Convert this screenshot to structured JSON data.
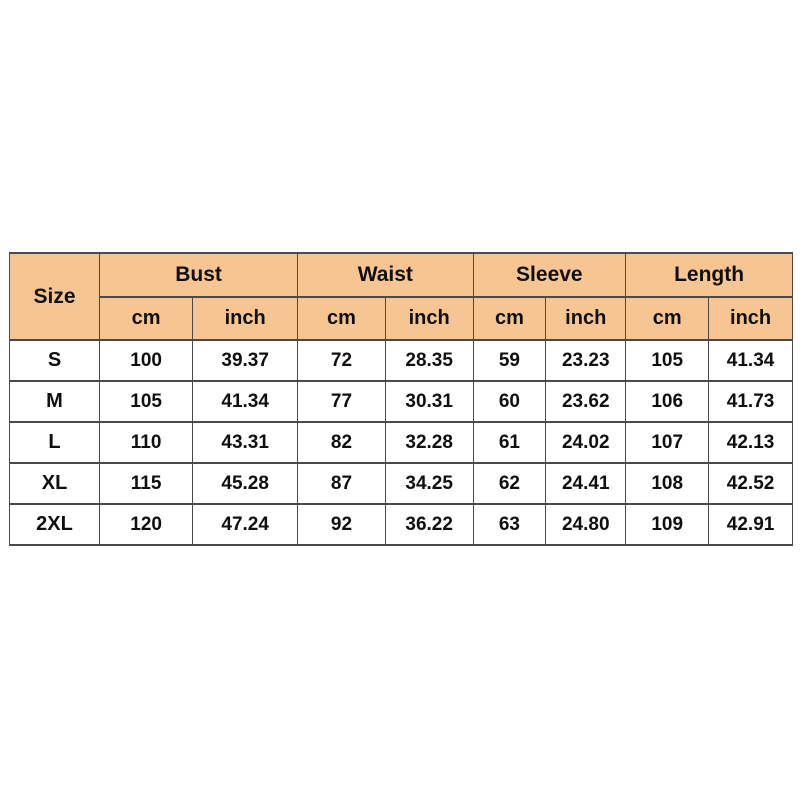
{
  "chart_data": {
    "type": "table",
    "corner_header": "Size",
    "column_groups": [
      "Bust",
      "Waist",
      "Sleeve",
      "Length"
    ],
    "unit_subheaders": [
      "cm",
      "inch"
    ],
    "rows": [
      {
        "size": "S",
        "values": [
          "100",
          "39.37",
          "72",
          "28.35",
          "59",
          "23.23",
          "105",
          "41.34"
        ]
      },
      {
        "size": "M",
        "values": [
          "105",
          "41.34",
          "77",
          "30.31",
          "60",
          "23.62",
          "106",
          "41.73"
        ]
      },
      {
        "size": "L",
        "values": [
          "110",
          "43.31",
          "82",
          "32.28",
          "61",
          "24.02",
          "107",
          "42.13"
        ]
      },
      {
        "size": "XL",
        "values": [
          "115",
          "45.28",
          "87",
          "34.25",
          "62",
          "24.41",
          "108",
          "42.52"
        ]
      },
      {
        "size": "2XL",
        "values": [
          "120",
          "47.24",
          "92",
          "36.22",
          "63",
          "24.80",
          "109",
          "42.91"
        ]
      }
    ]
  },
  "colors": {
    "header_bg": "#F6C592",
    "border": "#4a4a4a",
    "text": "#0f0f0f",
    "page_bg": "#ffffff"
  }
}
